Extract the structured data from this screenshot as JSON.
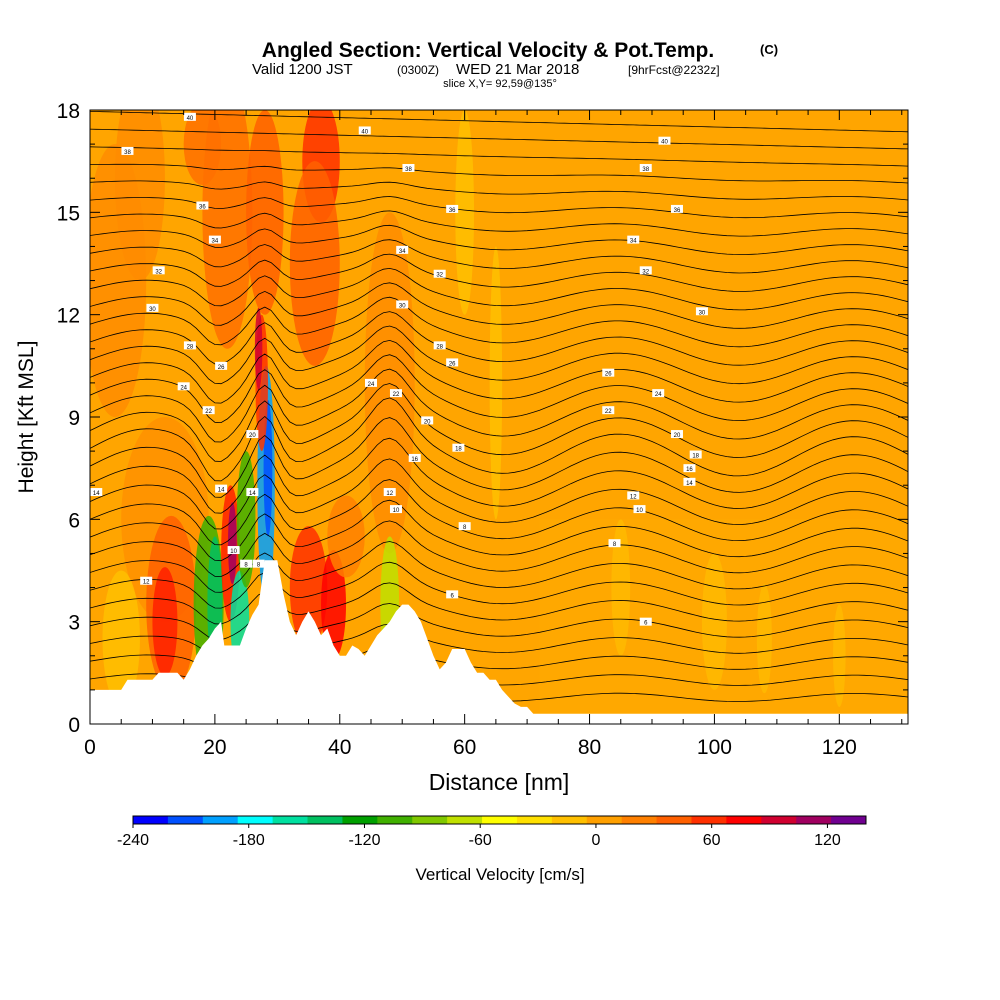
{
  "chart_data": {
    "type": "heatmap",
    "title": "Angled Section: Vertical Velocity & Pot.Temp.",
    "title_mark": "(C)",
    "subtitle_parts": [
      "Valid 1200 JST",
      "(0300Z)",
      "WED 21 Mar 2018",
      "[9hrFcst@2232z]"
    ],
    "slice_info": "slice X,Y= 92,59@135°",
    "xlabel": "Distance [nm]",
    "ylabel": "Height [Kft MSL]",
    "xlim": [
      0,
      131
    ],
    "ylim": [
      0,
      18
    ],
    "x_ticks": [
      0,
      20,
      40,
      60,
      80,
      100,
      120
    ],
    "y_ticks": [
      0,
      3,
      6,
      9,
      12,
      15,
      18
    ],
    "colorbar": {
      "title": "Vertical Velocity [cm/s]",
      "tick_labels": [
        "-240",
        "-180",
        "-120",
        "-60",
        "0",
        "60",
        "120"
      ],
      "tick_values": [
        -240,
        -180,
        -120,
        -60,
        0,
        60,
        120
      ],
      "range": [
        -240,
        140
      ],
      "colors": [
        "#0000ff",
        "#0050ff",
        "#00a0ff",
        "#00ffff",
        "#00e0a0",
        "#00c060",
        "#00a000",
        "#40b000",
        "#80c800",
        "#c0e000",
        "#ffff00",
        "#ffe000",
        "#ffc000",
        "#ffa000",
        "#ff8000",
        "#ff6000",
        "#ff3000",
        "#ff0000",
        "#d00030",
        "#a00060",
        "#700090"
      ]
    },
    "terrain": [
      [
        0,
        1
      ],
      [
        5,
        1
      ],
      [
        6,
        1.3
      ],
      [
        10,
        1.3
      ],
      [
        11,
        1.5
      ],
      [
        14,
        1.5
      ],
      [
        15,
        1.3
      ],
      [
        16,
        1.6
      ],
      [
        17,
        2
      ],
      [
        18,
        2.3
      ],
      [
        19,
        2.5
      ],
      [
        20,
        2.8
      ],
      [
        21,
        3
      ],
      [
        21.5,
        2.3
      ],
      [
        24,
        2.3
      ],
      [
        25,
        2.8
      ],
      [
        26,
        3.2
      ],
      [
        27,
        3.5
      ],
      [
        28,
        4.8
      ],
      [
        30,
        4.8
      ],
      [
        31,
        3.8
      ],
      [
        32,
        3
      ],
      [
        33,
        2.6
      ],
      [
        34,
        3
      ],
      [
        35,
        3.3
      ],
      [
        36,
        3
      ],
      [
        37,
        2.6
      ],
      [
        38,
        2.8
      ],
      [
        39,
        2.3
      ],
      [
        40,
        2
      ],
      [
        41,
        2
      ],
      [
        42,
        2.3
      ],
      [
        43,
        2.2
      ],
      [
        44,
        2
      ],
      [
        45,
        2.3
      ],
      [
        46,
        2.6
      ],
      [
        47,
        2.8
      ],
      [
        48,
        3
      ],
      [
        49,
        3.3
      ],
      [
        50,
        3.5
      ],
      [
        51,
        3.5
      ],
      [
        52,
        3.3
      ],
      [
        53,
        3
      ],
      [
        54,
        2.5
      ],
      [
        55,
        2
      ],
      [
        56,
        1.6
      ],
      [
        57,
        1.8
      ],
      [
        58,
        2.2
      ],
      [
        60,
        2.2
      ],
      [
        61,
        1.8
      ],
      [
        62,
        1.5
      ],
      [
        63,
        1.5
      ],
      [
        64,
        1.3
      ],
      [
        65,
        1.3
      ],
      [
        66,
        1
      ],
      [
        67,
        0.8
      ],
      [
        68,
        0.6
      ],
      [
        69,
        0.5
      ],
      [
        70,
        0.5
      ],
      [
        71,
        0.3
      ],
      [
        131,
        0.3
      ]
    ],
    "theta_labels": [
      {
        "x": 16,
        "y": 17.8,
        "text": "40"
      },
      {
        "x": 44,
        "y": 17.4,
        "text": "40"
      },
      {
        "x": 92,
        "y": 17.1,
        "text": "40"
      },
      {
        "x": 6,
        "y": 16.8,
        "text": "38"
      },
      {
        "x": 51,
        "y": 16.3,
        "text": "38"
      },
      {
        "x": 89,
        "y": 16.3,
        "text": "38"
      },
      {
        "x": 18,
        "y": 15.2,
        "text": "36"
      },
      {
        "x": 58,
        "y": 15.1,
        "text": "36"
      },
      {
        "x": 94,
        "y": 15.1,
        "text": "36"
      },
      {
        "x": 20,
        "y": 14.2,
        "text": "34"
      },
      {
        "x": 50,
        "y": 13.9,
        "text": "34"
      },
      {
        "x": 87,
        "y": 14.2,
        "text": "34"
      },
      {
        "x": 11,
        "y": 13.3,
        "text": "32"
      },
      {
        "x": 56,
        "y": 13.2,
        "text": "32"
      },
      {
        "x": 89,
        "y": 13.3,
        "text": "32"
      },
      {
        "x": 10,
        "y": 12.2,
        "text": "30"
      },
      {
        "x": 50,
        "y": 12.3,
        "text": "30"
      },
      {
        "x": 98,
        "y": 12.1,
        "text": "30"
      },
      {
        "x": 16,
        "y": 11.1,
        "text": "28"
      },
      {
        "x": 56,
        "y": 11.1,
        "text": "28"
      },
      {
        "x": 87,
        "y": 11
      },
      {
        "x": 21,
        "y": 10.5,
        "text": "26"
      },
      {
        "x": 58,
        "y": 10.6,
        "text": "26"
      },
      {
        "x": 83,
        "y": 10.3,
        "text": "26"
      },
      {
        "x": 15,
        "y": 9.9,
        "text": "24"
      },
      {
        "x": 45,
        "y": 10,
        "text": "24"
      },
      {
        "x": 91,
        "y": 9.7,
        "text": "24"
      },
      {
        "x": 19,
        "y": 9.2,
        "text": "22"
      },
      {
        "x": 49,
        "y": 9.7,
        "text": "22"
      },
      {
        "x": 83,
        "y": 9.2,
        "text": "22"
      },
      {
        "x": 26,
        "y": 8.5,
        "text": "20"
      },
      {
        "x": 54,
        "y": 8.9,
        "text": "20"
      },
      {
        "x": 94,
        "y": 8.5,
        "text": "20"
      },
      {
        "x": 59,
        "y": 8.1,
        "text": "18"
      },
      {
        "x": 97,
        "y": 7.9,
        "text": "18"
      },
      {
        "x": 52,
        "y": 7.8,
        "text": "16"
      },
      {
        "x": 96,
        "y": 7.5,
        "text": "16"
      },
      {
        "x": 1,
        "y": 6.8,
        "text": "14"
      },
      {
        "x": 21,
        "y": 6.9,
        "text": "14"
      },
      {
        "x": 26,
        "y": 6.8,
        "text": "14"
      },
      {
        "x": 96,
        "y": 7.1,
        "text": "14"
      },
      {
        "x": 48,
        "y": 6.8,
        "text": "12"
      },
      {
        "x": 87,
        "y": 6.7,
        "text": "12"
      },
      {
        "x": 49,
        "y": 6.3,
        "text": "10"
      },
      {
        "x": 88,
        "y": 6.3,
        "text": "10"
      },
      {
        "x": 23,
        "y": 5.1,
        "text": "10"
      },
      {
        "x": 60,
        "y": 5.8,
        "text": "8"
      },
      {
        "x": 25,
        "y": 4.7,
        "text": "8"
      },
      {
        "x": 27,
        "y": 4.7,
        "text": "8"
      },
      {
        "x": 84,
        "y": 5.3,
        "text": "8"
      },
      {
        "x": 58,
        "y": 3.8,
        "text": "6"
      },
      {
        "x": 89,
        "y": 3,
        "text": "6"
      },
      {
        "x": 9,
        "y": 4.2,
        "text": "12"
      }
    ]
  }
}
